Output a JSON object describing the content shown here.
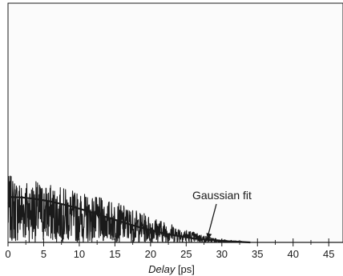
{
  "chart_data": {
    "type": "line",
    "xlabel": "Delay",
    "xlabel_unit": " [ps]",
    "xlim": [
      0,
      47
    ],
    "x_ticks": [
      0,
      5,
      10,
      15,
      20,
      25,
      30,
      35,
      40,
      45
    ],
    "minor_tick_step": 2.5,
    "ylim": [
      0,
      1
    ],
    "grid": false,
    "series": [
      {
        "style": "noisy-trace",
        "color": "#1a1a1a",
        "x_range": [
          0,
          33
        ],
        "envelope_x": [
          0,
          5,
          10,
          15,
          20,
          25,
          28,
          30,
          33
        ],
        "envelope_y": [
          0.28,
          0.25,
          0.21,
          0.17,
          0.11,
          0.055,
          0.025,
          0.012,
          0.004
        ]
      },
      {
        "style": "smooth-fit",
        "color": "#1a1a1a",
        "x": [
          0,
          2,
          4,
          6,
          8,
          10,
          12,
          14,
          16,
          18,
          20,
          22,
          24,
          26,
          28,
          30,
          32,
          34
        ],
        "y": [
          0.19,
          0.188,
          0.181,
          0.171,
          0.157,
          0.141,
          0.123,
          0.104,
          0.085,
          0.067,
          0.051,
          0.037,
          0.026,
          0.017,
          0.011,
          0.006,
          0.003,
          0.0
        ]
      }
    ],
    "annotations": [
      {
        "text": "Gaussian fit",
        "arrow_to": [
          28,
          0.011
        ]
      }
    ]
  }
}
